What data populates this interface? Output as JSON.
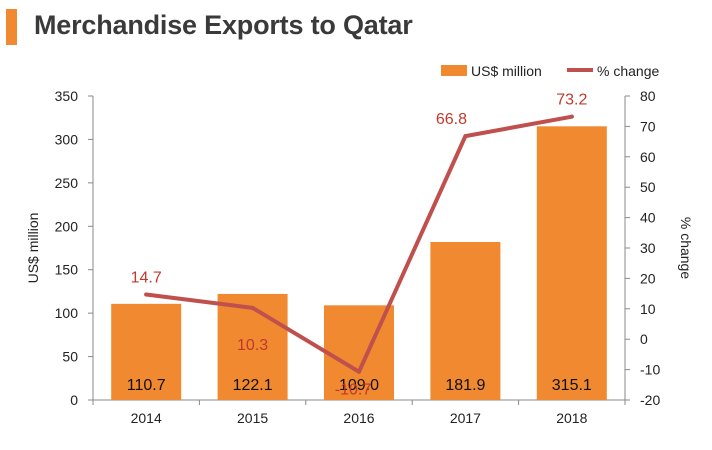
{
  "title": "Merchandise Exports to Qatar",
  "colors": {
    "bar": "#f0892f",
    "line": "#c0504d",
    "pct_label": "#c0392b",
    "accent": "#f0892f"
  },
  "chart_data": {
    "type": "bar",
    "categories": [
      "2014",
      "2015",
      "2016",
      "2017",
      "2018"
    ],
    "series": [
      {
        "name": "US$ million",
        "kind": "bar",
        "axis": "left",
        "values": [
          110.7,
          122.1,
          109.0,
          181.9,
          315.1
        ],
        "labels": [
          "110.7",
          "122.1",
          "109.0",
          "181.9",
          "315.1"
        ]
      },
      {
        "name": "% change",
        "kind": "line",
        "axis": "right",
        "values": [
          14.7,
          10.3,
          -10.7,
          66.8,
          73.2
        ],
        "labels": [
          "14.7",
          "10.3",
          "-10.7",
          "66.8",
          "73.2"
        ]
      }
    ],
    "ylabel_left": "US$ million",
    "ylabel_right": "% change",
    "ylim_left": [
      0,
      350
    ],
    "yticks_left": [
      "0",
      "50",
      "100",
      "150",
      "200",
      "250",
      "300",
      "350"
    ],
    "ylim_right": [
      -20,
      80
    ],
    "yticks_right": [
      "-20",
      "-10",
      "0",
      "10",
      "20",
      "30",
      "40",
      "50",
      "60",
      "70",
      "80"
    ],
    "legend": [
      "US$ million",
      "% change"
    ],
    "legend_position": "top-right",
    "grid": false
  }
}
